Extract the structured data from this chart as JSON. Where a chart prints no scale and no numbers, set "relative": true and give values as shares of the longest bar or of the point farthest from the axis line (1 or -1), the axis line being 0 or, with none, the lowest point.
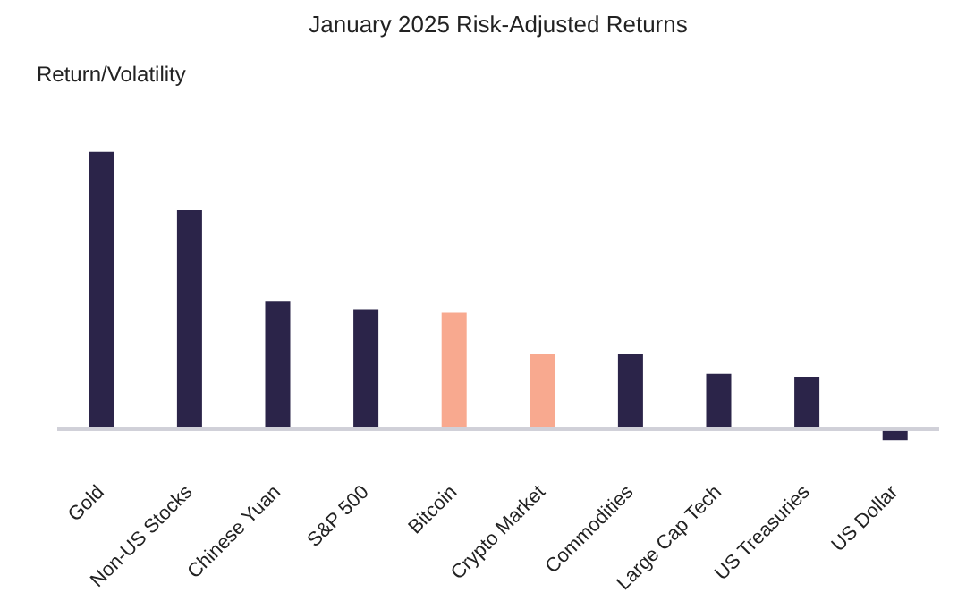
{
  "chart_data": {
    "type": "bar",
    "title": "January 2025 Risk-Adjusted Returns",
    "ylabel": "Return/Volatility",
    "relative": true,
    "categories": [
      "Gold",
      "Non-US Stocks",
      "Chinese Yuan",
      "S&P 500",
      "Bitcoin",
      "Crypto Market",
      "Commodities",
      "Large Cap Tech",
      "US Treasuries",
      "US Dollar"
    ],
    "values": [
      1,
      0.79,
      0.46,
      0.43,
      0.42,
      0.27,
      0.27,
      0.2,
      0.19,
      -0.04
    ],
    "colors": [
      "#2b2449",
      "#2b2449",
      "#2b2449",
      "#2b2449",
      "#f8a98f",
      "#f8a98f",
      "#2b2449",
      "#2b2449",
      "#2b2449",
      "#2b2449"
    ],
    "grid": false
  }
}
